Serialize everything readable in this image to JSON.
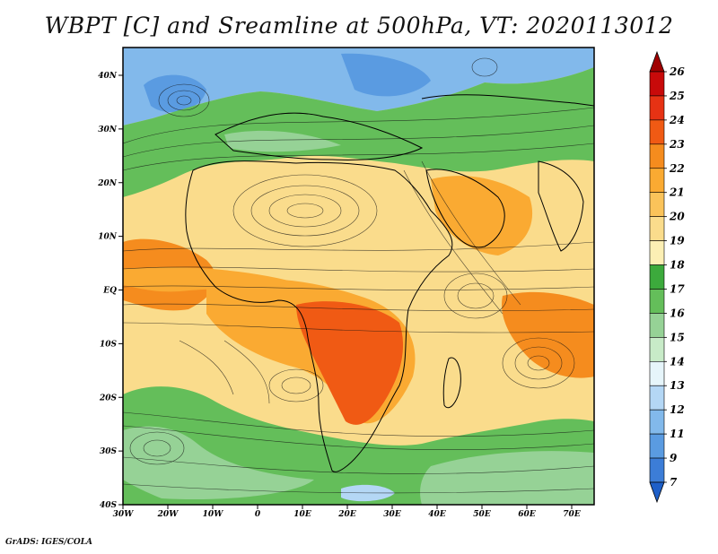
{
  "title": "WBPT [C] and Sreamline at 500hPa, VT: 2020113012",
  "footer": "GrADS: IGES/COLA",
  "map": {
    "lat_labels": [
      "40N",
      "30N",
      "20N",
      "10N",
      "EQ",
      "10S",
      "20S",
      "30S",
      "40S"
    ],
    "lon_labels": [
      "30W",
      "20W",
      "10W",
      "0",
      "10E",
      "20E",
      "30E",
      "40E",
      "50E",
      "60E",
      "70E"
    ]
  },
  "colorbar": {
    "levels": [
      "26",
      "25",
      "24",
      "23",
      "22",
      "21",
      "20",
      "19",
      "18",
      "17",
      "16",
      "15",
      "14",
      "13",
      "12",
      "11",
      "9",
      "7"
    ],
    "colors": [
      "#a00000",
      "#c80a0a",
      "#e63214",
      "#f05a14",
      "#f58c1e",
      "#faaa32",
      "#fac35a",
      "#fadc8c",
      "#fcefb4",
      "#3caa3c",
      "#64be5a",
      "#96d296",
      "#c8ebc8",
      "#e6f5fa",
      "#b4d7f5",
      "#82b9eb",
      "#5a9be1",
      "#3c7dd7",
      "#1e5fc8"
    ]
  }
}
